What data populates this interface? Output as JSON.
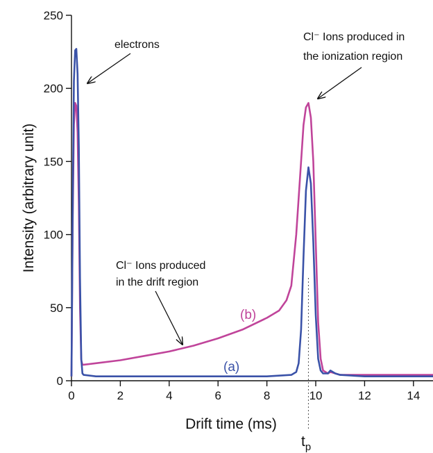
{
  "chart_data": {
    "type": "line",
    "xlabel": "Drift time (ms)",
    "ylabel": "Intensity (arbitrary unit)",
    "xlim": [
      0,
      14.8
    ],
    "ylim": [
      0,
      250
    ],
    "x_ticks": [
      0,
      2,
      4,
      6,
      8,
      10,
      12,
      14
    ],
    "y_ticks": [
      0,
      50,
      100,
      150,
      200,
      250
    ],
    "colors": {
      "a": "#3a52a8",
      "b": "#c0449a",
      "axis": "#111111",
      "marker": "#555555"
    },
    "series": [
      {
        "name": "(a)",
        "color": "#3a52a8",
        "x": [
          0.0,
          0.05,
          0.1,
          0.15,
          0.2,
          0.25,
          0.3,
          0.35,
          0.4,
          0.45,
          0.5,
          1.0,
          3.0,
          6.0,
          8.0,
          9.0,
          9.2,
          9.3,
          9.4,
          9.5,
          9.6,
          9.7,
          9.8,
          9.9,
          10.0,
          10.1,
          10.2,
          10.3,
          10.5,
          10.6,
          10.8,
          11.0,
          12.0,
          14.8
        ],
        "values": [
          3,
          120,
          205,
          226,
          227,
          210,
          160,
          70,
          15,
          5,
          4,
          3,
          3,
          3,
          3,
          4,
          6,
          12,
          35,
          85,
          130,
          146,
          135,
          95,
          45,
          15,
          7,
          5,
          5,
          7,
          5,
          4,
          3,
          3
        ]
      },
      {
        "name": "(b)",
        "color": "#c0449a",
        "x": [
          0.0,
          0.05,
          0.1,
          0.15,
          0.2,
          0.25,
          0.3,
          0.35,
          0.4,
          0.45,
          0.5,
          1.0,
          2.0,
          3.0,
          4.0,
          5.0,
          6.0,
          7.0,
          8.0,
          8.5,
          8.8,
          9.0,
          9.2,
          9.4,
          9.5,
          9.6,
          9.7,
          9.8,
          9.9,
          10.0,
          10.1,
          10.2,
          10.3,
          10.5,
          10.6,
          10.8,
          11.0,
          12.0,
          14.8
        ],
        "values": [
          3,
          110,
          175,
          190,
          188,
          170,
          120,
          50,
          14,
          11,
          11,
          12,
          14,
          17,
          20,
          24,
          29,
          35,
          43,
          48,
          55,
          65,
          100,
          150,
          175,
          187,
          190,
          180,
          150,
          95,
          40,
          15,
          7,
          5,
          6,
          5,
          4,
          4,
          4
        ]
      }
    ],
    "series_labels": [
      {
        "text": "(a)",
        "series": "a",
        "at": [
          10.0,
          6
        ]
      },
      {
        "text": "(b)",
        "series": "b",
        "at": [
          9.6,
          55
        ]
      }
    ],
    "annotations": [
      {
        "text": "electrons",
        "points_to": [
          0.2,
          225
        ]
      },
      {
        "text_lines": [
          "Cl⁻ Ions produced in",
          "the ionization region"
        ],
        "points_to": [
          9.6,
          190
        ]
      },
      {
        "text_lines": [
          "Cl⁻ Ions produced",
          "in the drift region"
        ],
        "points_to": [
          4.5,
          25
        ]
      }
    ],
    "vertical_marker": {
      "x": 9.7,
      "label_main": "t",
      "label_sub": "p",
      "style": "dotted"
    },
    "grid": false
  }
}
